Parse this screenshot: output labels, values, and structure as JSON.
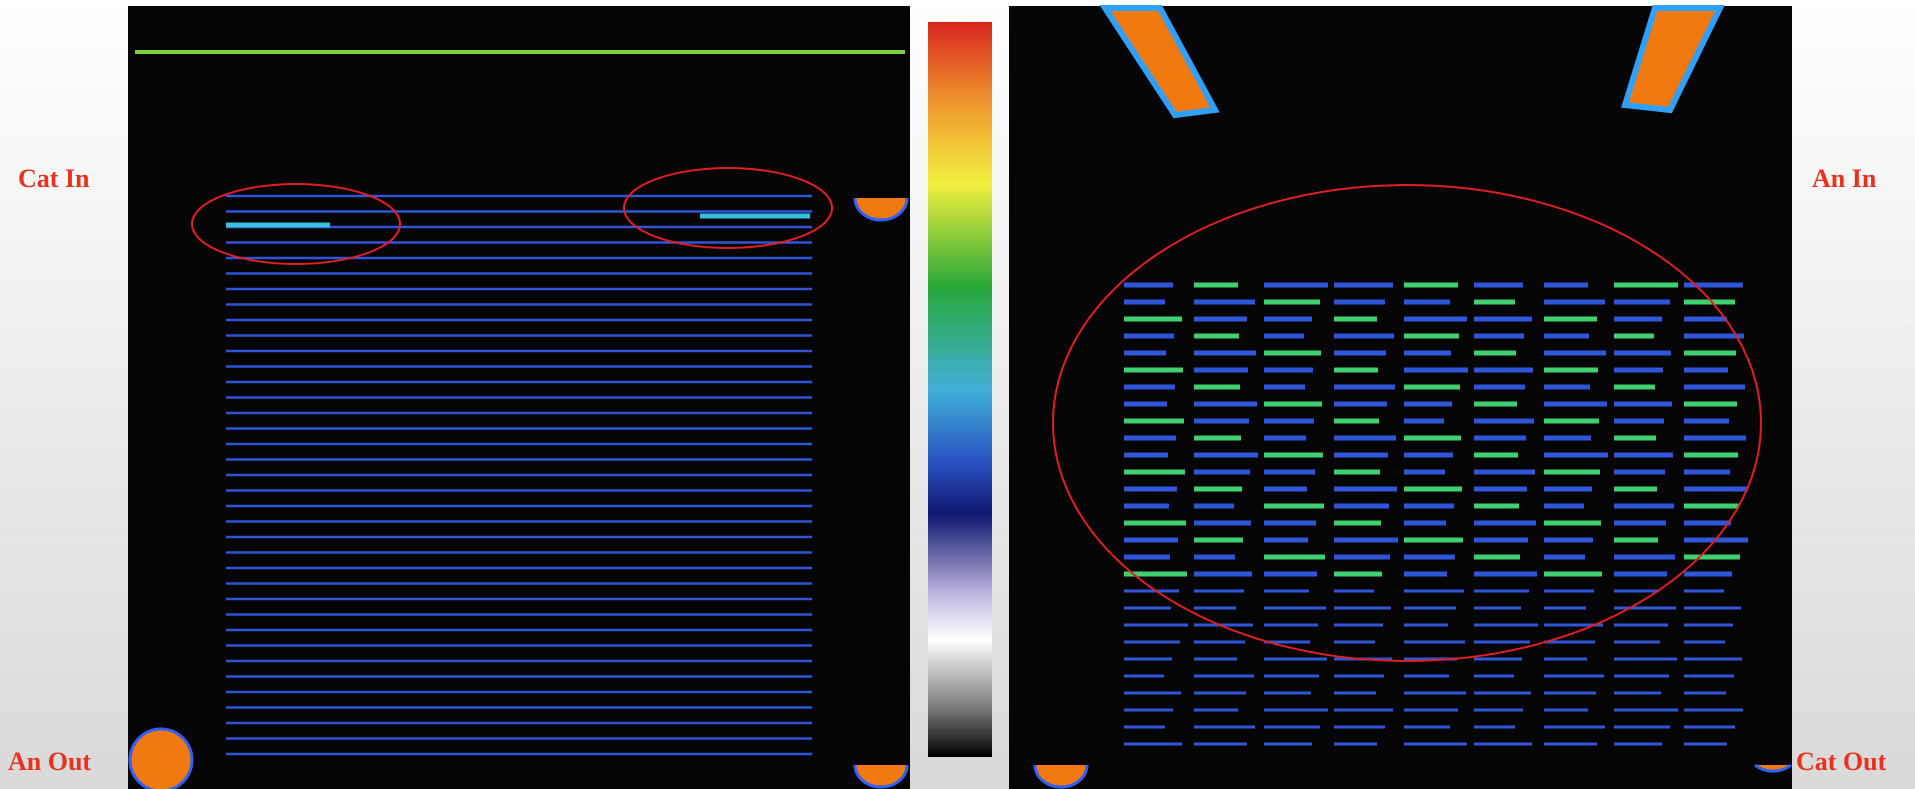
{
  "labels": {
    "top_left": "Cat In",
    "bottom_left": "An Out",
    "top_right": "An In",
    "bottom_right": "Cat Out"
  }
}
